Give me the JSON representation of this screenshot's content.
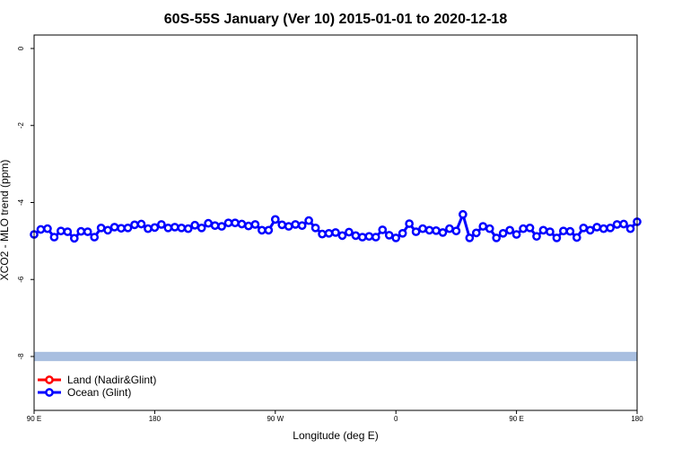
{
  "chart_data": {
    "type": "line",
    "title": "60S-55S January (Ver 10)   2015-01-01 to 2020-12-18",
    "xlabel": "Longitude (deg E)",
    "ylabel": "XCO2 - MLO trend (ppm)",
    "xlim": [
      90,
      450
    ],
    "ylim": [
      -9.4,
      0.35
    ],
    "x_tick_values": [
      90,
      162,
      234,
      306,
      378,
      450
    ],
    "x_tick_labels": [
      "90 E",
      "180",
      "90 W",
      "0",
      "90 E",
      "180"
    ],
    "y_tick_values": [
      0,
      -2,
      -4,
      -6,
      -8
    ],
    "y_tick_labels": [
      "0",
      "-2",
      "-4",
      "-6",
      "-8"
    ],
    "grid": false,
    "legend_position": "bottom-left",
    "band": {
      "y_from": -7.88,
      "y_to": -8.12,
      "color": "#a9bfe0"
    },
    "series": [
      {
        "name": "Land (Nadir&Glint)",
        "color": "#ff0000",
        "x": [],
        "y": []
      },
      {
        "name": "Ocean (Glint)",
        "color": "#0000ff",
        "x": [
          90,
          94,
          98,
          102,
          106,
          110,
          114,
          118,
          122,
          126,
          130,
          134,
          138,
          142,
          146,
          150,
          154,
          158,
          162,
          166,
          170,
          174,
          178,
          182,
          186,
          190,
          194,
          198,
          202,
          206,
          210,
          214,
          218,
          222,
          226,
          230,
          234,
          238,
          242,
          246,
          250,
          254,
          258,
          262,
          266,
          270,
          274,
          278,
          282,
          286,
          290,
          294,
          298,
          302,
          306,
          310,
          314,
          318,
          322,
          326,
          330,
          334,
          338,
          342,
          346,
          350,
          354,
          358,
          362,
          366,
          370,
          374,
          378,
          382,
          386,
          390,
          394,
          398,
          402,
          406,
          410,
          414,
          418,
          422,
          426,
          430,
          434,
          438,
          442,
          446,
          450
        ],
        "y": [
          -4.83,
          -4.7,
          -4.68,
          -4.9,
          -4.74,
          -4.76,
          -4.93,
          -4.75,
          -4.76,
          -4.9,
          -4.66,
          -4.72,
          -4.64,
          -4.67,
          -4.66,
          -4.58,
          -4.56,
          -4.68,
          -4.65,
          -4.57,
          -4.66,
          -4.64,
          -4.66,
          -4.68,
          -4.59,
          -4.66,
          -4.54,
          -4.6,
          -4.62,
          -4.53,
          -4.53,
          -4.56,
          -4.61,
          -4.57,
          -4.72,
          -4.72,
          -4.44,
          -4.58,
          -4.62,
          -4.57,
          -4.6,
          -4.47,
          -4.66,
          -4.82,
          -4.8,
          -4.78,
          -4.86,
          -4.77,
          -4.86,
          -4.9,
          -4.88,
          -4.9,
          -4.71,
          -4.85,
          -4.92,
          -4.8,
          -4.55,
          -4.76,
          -4.68,
          -4.72,
          -4.73,
          -4.78,
          -4.68,
          -4.74,
          -4.31,
          -4.92,
          -4.79,
          -4.62,
          -4.68,
          -4.92,
          -4.8,
          -4.72,
          -4.83,
          -4.68,
          -4.66,
          -4.88,
          -4.72,
          -4.76,
          -4.92,
          -4.74,
          -4.75,
          -4.91,
          -4.66,
          -4.72,
          -4.64,
          -4.68,
          -4.66,
          -4.57,
          -4.56,
          -4.68,
          -4.5
        ]
      }
    ]
  }
}
